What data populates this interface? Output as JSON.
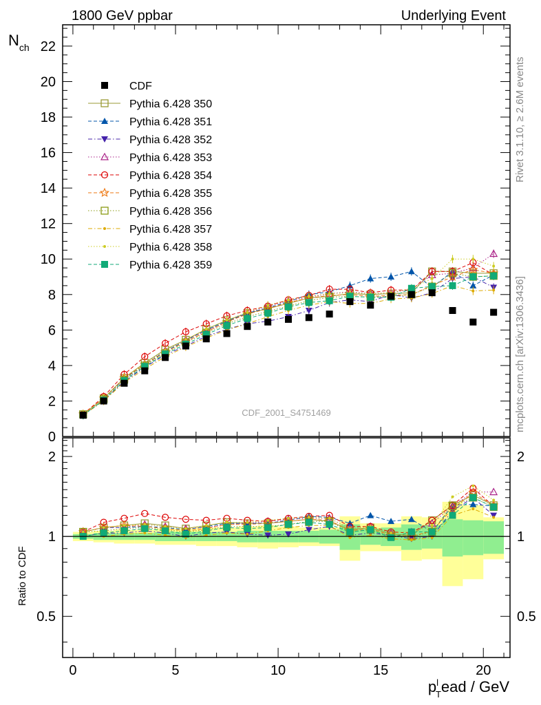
{
  "header": {
    "left": "1800 GeV ppbar",
    "right": "Underlying Event"
  },
  "side_labels": {
    "rivet": "Rivet 3.1.10, ≥ 2.6M events",
    "mcplots": "mcplots.cern.ch [arXiv:1306.3436]"
  },
  "watermark": "CDF_2001_S4751469",
  "chart_data": [
    {
      "type": "scatter",
      "panel": "main",
      "ylabel": "N",
      "ylabel_sub": "ch",
      "xlim": [
        -0.5,
        21.3
      ],
      "ylim": [
        0,
        23.2
      ],
      "x_ticks": [
        0,
        5,
        10,
        15,
        20
      ],
      "y_ticks": [
        0,
        2,
        4,
        6,
        8,
        10,
        12,
        14,
        16,
        18,
        20,
        22
      ],
      "x": [
        0.5,
        1.5,
        2.5,
        3.5,
        4.5,
        5.5,
        6.5,
        7.5,
        8.5,
        9.5,
        10.5,
        11.5,
        12.5,
        13.5,
        14.5,
        15.5,
        16.5,
        17.5,
        18.5,
        19.5,
        20.5
      ],
      "legend_placement": "top-left",
      "series": [
        {
          "name": "CDF",
          "color": "#000000",
          "marker": "square-filled",
          "line": "none",
          "values": [
            1.2,
            2.0,
            3.0,
            3.7,
            4.45,
            5.1,
            5.5,
            5.8,
            6.2,
            6.45,
            6.6,
            6.7,
            6.9,
            7.6,
            7.4,
            7.9,
            8.0,
            8.1,
            7.1,
            6.45,
            7.0
          ]
        },
        {
          "name": "Pythia 6.428 350",
          "color": "#999933",
          "marker": "square-open",
          "line": "solid",
          "values": [
            1.25,
            2.15,
            3.3,
            4.15,
            4.9,
            5.45,
            6.05,
            6.55,
            6.95,
            7.2,
            7.5,
            7.8,
            7.9,
            8.05,
            8.0,
            8.05,
            8.1,
            9.3,
            9.3,
            9.2,
            9.2
          ]
        },
        {
          "name": "Pythia 6.428 351",
          "color": "#0055aa",
          "marker": "triangle-up-filled",
          "line": "dashed",
          "values": [
            1.25,
            2.15,
            3.25,
            4.05,
            4.8,
            5.4,
            6.0,
            6.5,
            6.95,
            7.25,
            7.6,
            8.0,
            8.15,
            8.5,
            8.9,
            9.0,
            9.3,
            8.4,
            9.3,
            8.5,
            9.1
          ]
        },
        {
          "name": "Pythia 6.428 352",
          "color": "#4422aa",
          "marker": "triangle-down-filled",
          "line": "dashdot",
          "values": [
            1.2,
            2.05,
            3.1,
            3.9,
            4.6,
            5.1,
            5.65,
            6.05,
            6.35,
            6.5,
            6.75,
            7.1,
            7.55,
            7.7,
            7.6,
            8.0,
            7.8,
            8.1,
            8.9,
            9.0,
            8.4
          ]
        },
        {
          "name": "Pythia 6.428 353",
          "color": "#aa2288",
          "marker": "triangle-up-open",
          "line": "dotted",
          "values": [
            1.25,
            2.15,
            3.25,
            4.1,
            4.85,
            5.45,
            5.95,
            6.45,
            6.95,
            7.35,
            7.65,
            7.85,
            8.05,
            8.15,
            8.05,
            8.1,
            8.3,
            9.1,
            9.2,
            9.5,
            10.3
          ]
        },
        {
          "name": "Pythia 6.428 354",
          "color": "#dd0000",
          "marker": "circle-open",
          "line": "dashed",
          "values": [
            1.25,
            2.25,
            3.5,
            4.5,
            5.25,
            5.9,
            6.35,
            6.8,
            7.1,
            7.35,
            7.7,
            7.95,
            8.3,
            8.3,
            8.1,
            8.25,
            8.25,
            9.3,
            9.3,
            9.8,
            9.1
          ]
        },
        {
          "name": "Pythia 6.428 355",
          "color": "#ee7711",
          "marker": "star-open",
          "line": "dashed",
          "values": [
            1.25,
            2.15,
            3.3,
            4.05,
            4.75,
            5.35,
            5.9,
            6.45,
            6.9,
            7.2,
            7.55,
            7.8,
            7.95,
            8.0,
            7.9,
            7.95,
            8.0,
            8.5,
            9.0,
            9.4,
            9.2
          ]
        },
        {
          "name": "Pythia 6.428 356",
          "color": "#889911",
          "marker": "square-open",
          "line": "dotted",
          "values": [
            1.25,
            2.1,
            3.2,
            4.0,
            4.7,
            5.3,
            5.85,
            6.35,
            6.75,
            7.05,
            7.35,
            7.65,
            7.85,
            7.9,
            7.85,
            7.9,
            8.0,
            8.45,
            9.2,
            9.0,
            9.05
          ]
        },
        {
          "name": "Pythia 6.428 357",
          "color": "#ddaa00",
          "marker": "dot",
          "line": "dashdot",
          "values": [
            1.2,
            2.0,
            3.05,
            3.8,
            4.5,
            5.05,
            5.55,
            6.0,
            6.35,
            6.75,
            7.1,
            7.4,
            7.6,
            7.5,
            7.5,
            7.75,
            7.8,
            8.05,
            8.5,
            8.2,
            8.25
          ]
        },
        {
          "name": "Pythia 6.428 358",
          "color": "#cccc22",
          "marker": "dot",
          "line": "dotted",
          "values": [
            1.25,
            2.15,
            3.3,
            4.1,
            4.85,
            5.45,
            6.05,
            6.55,
            7.0,
            7.4,
            7.7,
            7.9,
            8.05,
            8.1,
            8.05,
            8.1,
            8.35,
            8.9,
            10.0,
            10.0,
            9.6
          ]
        },
        {
          "name": "Pythia 6.428 359",
          "color": "#11aa77",
          "marker": "square-filled",
          "line": "dashed",
          "values": [
            1.2,
            2.05,
            3.15,
            3.95,
            4.65,
            5.2,
            5.75,
            6.25,
            6.65,
            6.95,
            7.3,
            7.55,
            7.65,
            7.9,
            7.85,
            7.85,
            8.35,
            8.45,
            8.5,
            9.0,
            9.05
          ]
        }
      ]
    },
    {
      "type": "scatter",
      "panel": "ratio",
      "ylabel": "Ratio to CDF",
      "xlabel_main": "p",
      "xlabel_sub": "T",
      "xlabel_sup": "l",
      "xlabel_rest": "ead / GeV",
      "ylim": [
        0.35,
        2.35
      ],
      "y_ticks": [
        0.5,
        1,
        2
      ],
      "y_tick_labels": [
        "0.5",
        "1",
        "2"
      ],
      "x_tick_labels": [
        "0",
        "5",
        "10",
        "15",
        "20"
      ],
      "band_edges": [
        0,
        1,
        2,
        3,
        4,
        5,
        6,
        7,
        8,
        9,
        10,
        11,
        12,
        13,
        14,
        15,
        16,
        17,
        18,
        19,
        20,
        21
      ],
      "band_inner_lo": [
        0.98,
        0.97,
        0.97,
        0.97,
        0.96,
        0.96,
        0.96,
        0.96,
        0.95,
        0.95,
        0.95,
        0.95,
        0.94,
        0.89,
        0.93,
        0.92,
        0.89,
        0.9,
        0.84,
        0.85,
        0.86
      ],
      "band_inner_hi": [
        1.02,
        1.03,
        1.03,
        1.03,
        1.04,
        1.04,
        1.04,
        1.04,
        1.05,
        1.05,
        1.05,
        1.05,
        1.06,
        1.11,
        1.07,
        1.08,
        1.11,
        1.1,
        1.16,
        1.15,
        1.14
      ],
      "band_outer_lo": [
        0.96,
        0.95,
        0.94,
        0.94,
        0.93,
        0.93,
        0.92,
        0.92,
        0.91,
        0.9,
        0.91,
        0.92,
        0.92,
        0.81,
        0.88,
        0.88,
        0.81,
        0.82,
        0.65,
        0.69,
        0.82
      ],
      "band_outer_hi": [
        1.04,
        1.05,
        1.06,
        1.06,
        1.07,
        1.07,
        1.08,
        1.08,
        1.09,
        1.1,
        1.09,
        1.08,
        1.08,
        1.19,
        1.12,
        1.12,
        1.19,
        1.18,
        1.35,
        1.31,
        1.18
      ],
      "series_ratios": {
        "Pythia 6.428 350": [
          1.04,
          1.08,
          1.1,
          1.12,
          1.1,
          1.07,
          1.1,
          1.13,
          1.12,
          1.12,
          1.14,
          1.16,
          1.14,
          1.06,
          1.08,
          1.02,
          1.01,
          1.15,
          1.31,
          1.43,
          1.31
        ],
        "Pythia 6.428 351": [
          1.04,
          1.08,
          1.08,
          1.09,
          1.08,
          1.06,
          1.09,
          1.12,
          1.12,
          1.12,
          1.15,
          1.19,
          1.18,
          1.12,
          1.2,
          1.14,
          1.16,
          1.04,
          1.31,
          1.32,
          1.3
        ],
        "Pythia 6.428 352": [
          1.0,
          1.03,
          1.03,
          1.05,
          1.03,
          1.0,
          1.03,
          1.04,
          1.02,
          1.01,
          1.02,
          1.06,
          1.09,
          1.01,
          1.03,
          1.01,
          0.98,
          1.0,
          1.25,
          1.4,
          1.2
        ],
        "Pythia 6.428 353": [
          1.04,
          1.08,
          1.08,
          1.11,
          1.09,
          1.07,
          1.08,
          1.11,
          1.12,
          1.14,
          1.16,
          1.17,
          1.17,
          1.07,
          1.09,
          1.03,
          1.04,
          1.12,
          1.3,
          1.47,
          1.47
        ],
        "Pythia 6.428 354": [
          1.04,
          1.13,
          1.17,
          1.22,
          1.18,
          1.16,
          1.15,
          1.17,
          1.15,
          1.14,
          1.17,
          1.19,
          1.2,
          1.09,
          1.09,
          1.04,
          1.03,
          1.15,
          1.31,
          1.52,
          1.3
        ],
        "Pythia 6.428 355": [
          1.04,
          1.08,
          1.1,
          1.09,
          1.07,
          1.05,
          1.07,
          1.11,
          1.11,
          1.12,
          1.14,
          1.16,
          1.15,
          1.05,
          1.07,
          1.01,
          1.0,
          1.05,
          1.27,
          1.46,
          1.31
        ],
        "Pythia 6.428 356": [
          1.04,
          1.05,
          1.07,
          1.08,
          1.06,
          1.04,
          1.06,
          1.09,
          1.09,
          1.09,
          1.11,
          1.14,
          1.14,
          1.04,
          1.06,
          1.0,
          1.0,
          1.04,
          1.3,
          1.4,
          1.29
        ],
        "Pythia 6.428 357": [
          1.0,
          1.0,
          1.02,
          1.03,
          1.01,
          0.99,
          1.01,
          1.03,
          1.02,
          1.05,
          1.08,
          1.1,
          1.1,
          0.99,
          1.01,
          0.98,
          0.97,
          0.99,
          1.2,
          1.27,
          1.18
        ],
        "Pythia 6.428 358": [
          1.04,
          1.08,
          1.1,
          1.11,
          1.09,
          1.07,
          1.1,
          1.13,
          1.13,
          1.15,
          1.17,
          1.18,
          1.17,
          1.07,
          1.09,
          1.03,
          1.04,
          1.1,
          1.41,
          1.55,
          1.37
        ],
        "Pythia 6.428 359": [
          1.0,
          1.03,
          1.05,
          1.07,
          1.05,
          1.02,
          1.05,
          1.08,
          1.07,
          1.08,
          1.11,
          1.13,
          1.11,
          1.04,
          1.06,
          0.99,
          1.04,
          1.04,
          1.2,
          1.4,
          1.29
        ]
      }
    }
  ]
}
